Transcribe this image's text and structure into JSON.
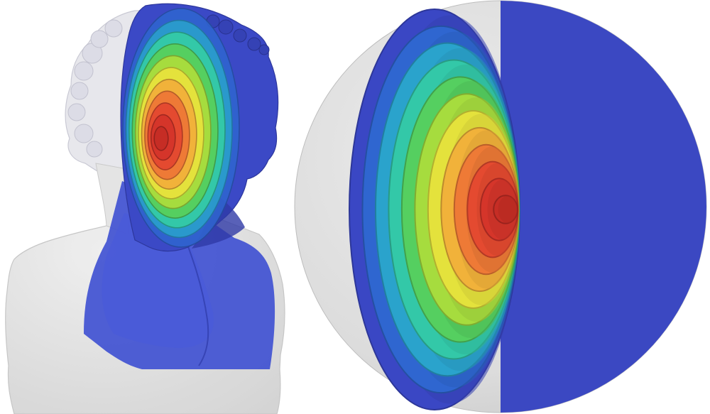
{
  "palette": {
    "background": "#ffffff",
    "shell_light": "#e2e2e2",
    "shell_edge": "#c9c9c9",
    "outer_layer": "#3a47c4",
    "ramp": [
      "#3a47c4",
      "#2f66d0",
      "#2aa3cc",
      "#33c8a8",
      "#55cf60",
      "#a6dc3e",
      "#e4e23c",
      "#f1b23a",
      "#ee7a36",
      "#e44a30",
      "#d5352a",
      "#c62d25"
    ]
  },
  "figures": [
    {
      "name": "bust-model",
      "layers": 12
    },
    {
      "name": "sphere-model",
      "layers": 12
    }
  ]
}
